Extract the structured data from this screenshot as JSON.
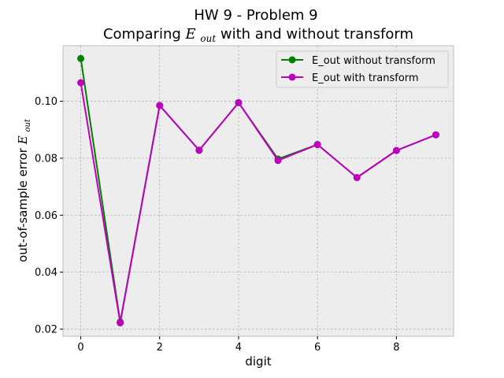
{
  "chart_data": {
    "type": "line",
    "title_line1": "HW 9 - Problem 9",
    "title_line2_prefix": "Comparing ",
    "title_line2_math": "E",
    "title_line2_math_sub": "out",
    "title_line2_suffix": " with and without transform",
    "xlabel": "digit",
    "ylabel_prefix": "out-of-sample error ",
    "ylabel_math": "E",
    "ylabel_math_sub": "out",
    "xlim": [
      -0.45,
      9.45
    ],
    "ylim": [
      0.0175,
      0.1195
    ],
    "xticks": [
      0,
      2,
      4,
      6,
      8
    ],
    "yticks": [
      0.02,
      0.04,
      0.06,
      0.08,
      0.1
    ],
    "ytick_labels": [
      "0.02",
      "0.04",
      "0.06",
      "0.08",
      "0.10"
    ],
    "grid": true,
    "legend_position": "top-right",
    "x": [
      0,
      1,
      2,
      3,
      4,
      5,
      6,
      7,
      8,
      9
    ],
    "series": [
      {
        "name": "E_out without transform",
        "color": "#008000",
        "values": [
          0.115,
          0.0225,
          0.0985,
          0.0828,
          0.0995,
          0.0797,
          0.0848,
          0.0732,
          0.0827,
          0.0882
        ]
      },
      {
        "name": "E_out with transform",
        "color": "#bf00bf",
        "values": [
          0.1065,
          0.0222,
          0.0985,
          0.0828,
          0.0995,
          0.0792,
          0.0848,
          0.0732,
          0.0827,
          0.0882
        ]
      }
    ]
  },
  "colors": {
    "plot_background": "#ededed",
    "frame": "#bcbcbc"
  }
}
